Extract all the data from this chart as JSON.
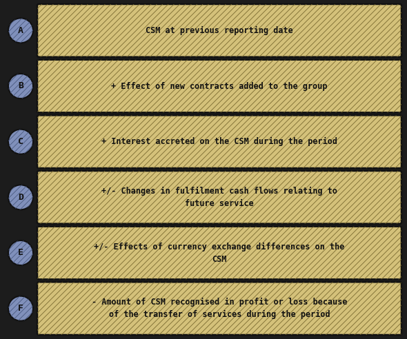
{
  "background_color": "#1c1c1c",
  "box_fill_color": "#d4c17a",
  "box_edge_color": "#111111",
  "hatch_pattern": "////",
  "hatch_color": "#7a6b30",
  "circle_fill_color": "#8090bb",
  "circle_edge_color": "#111111",
  "text_color": "#111111",
  "steps": [
    {
      "label": "A",
      "text": "CSM at previous reporting date",
      "multiline": false
    },
    {
      "label": "B",
      "text": "+ Effect of new contracts added to the group",
      "multiline": false
    },
    {
      "label": "C",
      "text": "+ Interest accreted on the CSM during the period",
      "multiline": false
    },
    {
      "label": "D",
      "text": "+/- Changes in fulfilment cash flows relating to\nfuture service",
      "multiline": true
    },
    {
      "label": "E",
      "text": "+/- Effects of currency exchange differences on the\nCSM",
      "multiline": true
    },
    {
      "label": "F",
      "text": "- Amount of CSM recognised in profit or loss because\nof the transfer of services during the period",
      "multiline": true
    }
  ],
  "font_family": "monospace",
  "font_size": 8.5,
  "label_font_size": 9.5,
  "fig_width": 5.9,
  "fig_height": 4.92,
  "dpi": 100
}
